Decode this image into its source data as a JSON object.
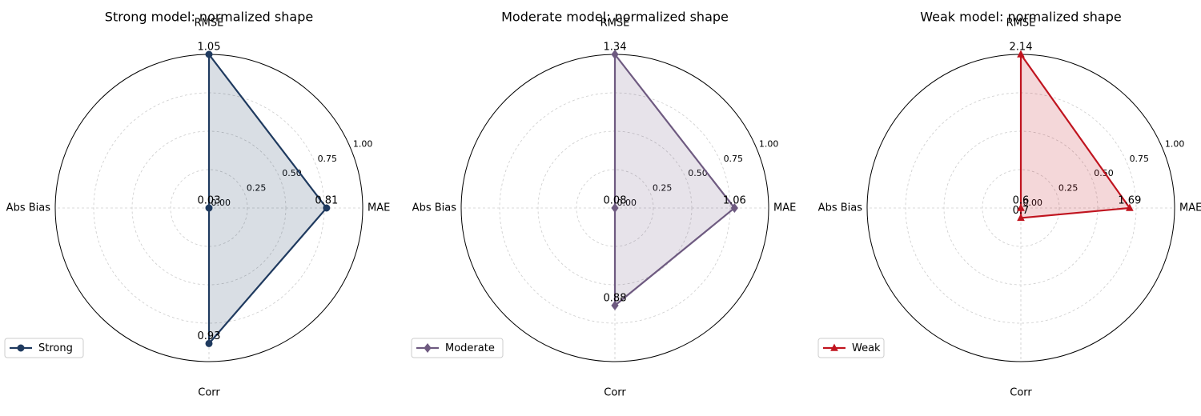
{
  "chart_data": [
    {
      "type": "radar",
      "title": "Strong model: normalized shape",
      "categories": [
        "RMSE",
        "MAE",
        "Corr",
        "Abs Bias"
      ],
      "series": [
        {
          "name": "Strong",
          "color": "#1f3a5f",
          "marker": "circle",
          "values": [
            1.05,
            0.81,
            0.93,
            0.03
          ]
        }
      ],
      "normalize": "min-max",
      "rlim": [
        0,
        1
      ],
      "rticks": [
        {
          "value": 0,
          "label": "0.00"
        },
        0.25,
        {
          "value": 0.5,
          "label": "0.50"
        },
        0.75,
        {
          "value": 1,
          "label": "1.00"
        }
      ],
      "grid": true,
      "legend": "lower left"
    },
    {
      "type": "radar",
      "title": "Moderate model: normalized shape",
      "categories": [
        "RMSE",
        "MAE",
        "Corr",
        "Abs Bias"
      ],
      "series": [
        {
          "name": "Moderate",
          "color": "#6e5a80",
          "marker": "diamond",
          "values": [
            1.34,
            1.06,
            0.88,
            0.08
          ]
        }
      ],
      "normalize": "min-max",
      "rlim": [
        0,
        1
      ],
      "rticks": [
        {
          "value": 0,
          "label": "0.00"
        },
        0.25,
        {
          "value": 0.5,
          "label": "0.50"
        },
        0.75,
        {
          "value": 1,
          "label": "1.00"
        }
      ],
      "grid": true,
      "legend": "lower left"
    },
    {
      "type": "radar",
      "title": "Weak model: normalized shape",
      "categories": [
        "RMSE",
        "MAE",
        "Corr",
        "Abs Bias"
      ],
      "series": [
        {
          "name": "Weak",
          "color": "#c0141f",
          "marker": "triangle",
          "values": [
            2.14,
            1.69,
            0.7,
            0.6
          ]
        }
      ],
      "normalize": "min-max",
      "rlim": [
        0,
        1
      ],
      "rticks": [
        {
          "value": 0,
          "label": "0.00"
        },
        0.25,
        {
          "value": 0.5,
          "label": "0.50"
        },
        0.75,
        {
          "value": 1,
          "label": "1.00"
        }
      ],
      "grid": true,
      "legend": "lower left"
    }
  ]
}
